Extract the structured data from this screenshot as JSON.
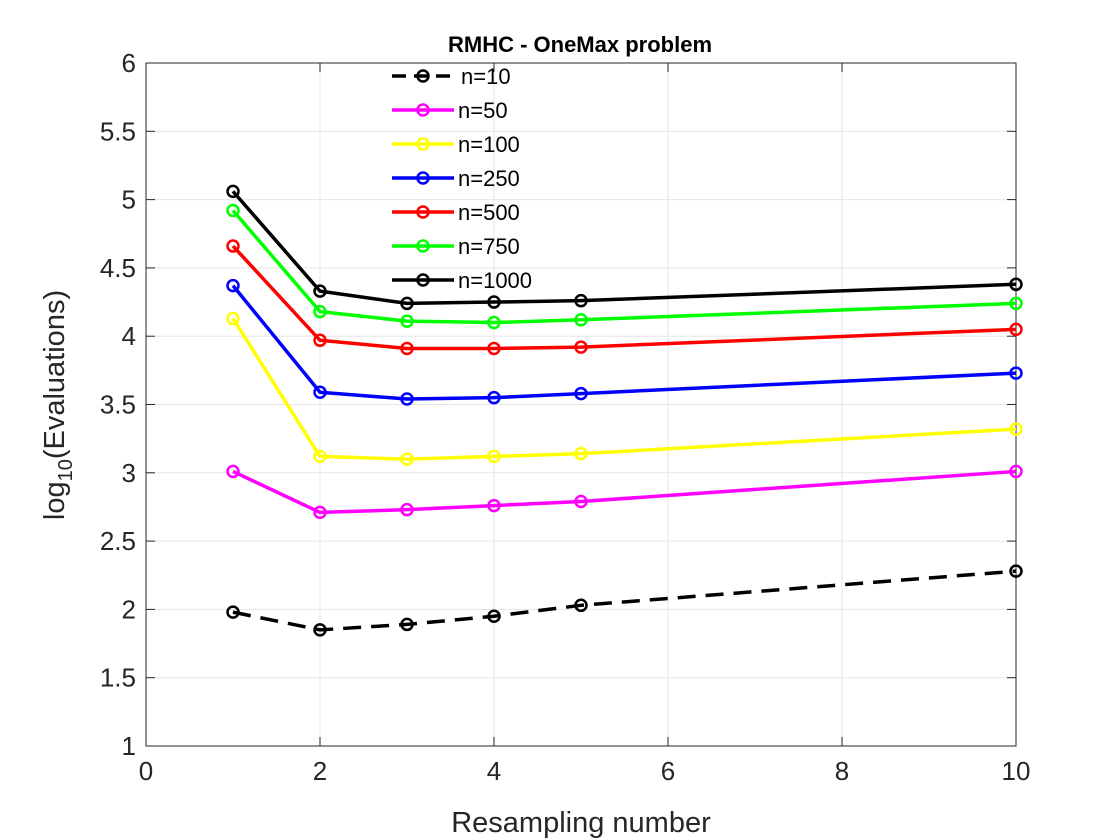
{
  "chart_data": {
    "type": "line",
    "title": "RMHC - OneMax problem",
    "xlabel": "Resampling number",
    "ylabel_base": "log",
    "ylabel_sub": "10",
    "ylabel_rest": "(Evaluations)",
    "xlim": [
      0,
      10
    ],
    "ylim": [
      1,
      6
    ],
    "xticks": [
      0,
      2,
      4,
      6,
      8,
      10
    ],
    "yticks": [
      1,
      1.5,
      2,
      2.5,
      3,
      3.5,
      4,
      4.5,
      5,
      5.5,
      6
    ],
    "xtick_labels": [
      "0",
      "2",
      "4",
      "6",
      "8",
      "10"
    ],
    "ytick_labels": [
      "1",
      "1.5",
      "2",
      "2.5",
      "3",
      "3.5",
      "4",
      "4.5",
      "5",
      "5.5",
      "6"
    ],
    "grid": true,
    "legend_position": "top",
    "x": [
      1,
      2,
      3,
      4,
      5,
      10
    ],
    "series": [
      {
        "name": "n=10",
        "color": "#000000",
        "dashed": true,
        "values": [
          1.98,
          1.85,
          1.89,
          1.95,
          2.03,
          2.28
        ]
      },
      {
        "name": "n=50",
        "color": "#ff00ff",
        "dashed": false,
        "values": [
          3.01,
          2.71,
          2.73,
          2.76,
          2.79,
          3.01
        ]
      },
      {
        "name": "n=100",
        "color": "#ffff00",
        "dashed": false,
        "values": [
          4.13,
          3.12,
          3.1,
          3.12,
          3.14,
          3.32
        ]
      },
      {
        "name": "n=250",
        "color": "#0000ff",
        "dashed": false,
        "values": [
          4.37,
          3.59,
          3.54,
          3.55,
          3.58,
          3.73
        ]
      },
      {
        "name": "n=500",
        "color": "#ff0000",
        "dashed": false,
        "values": [
          4.66,
          3.97,
          3.91,
          3.91,
          3.92,
          4.05
        ]
      },
      {
        "name": "n=750",
        "color": "#00ff00",
        "dashed": false,
        "values": [
          4.92,
          4.18,
          4.11,
          4.1,
          4.12,
          4.24
        ]
      },
      {
        "name": "n=1000",
        "color": "#000000",
        "dashed": false,
        "values": [
          5.06,
          4.33,
          4.24,
          4.25,
          4.26,
          4.38
        ]
      }
    ]
  }
}
